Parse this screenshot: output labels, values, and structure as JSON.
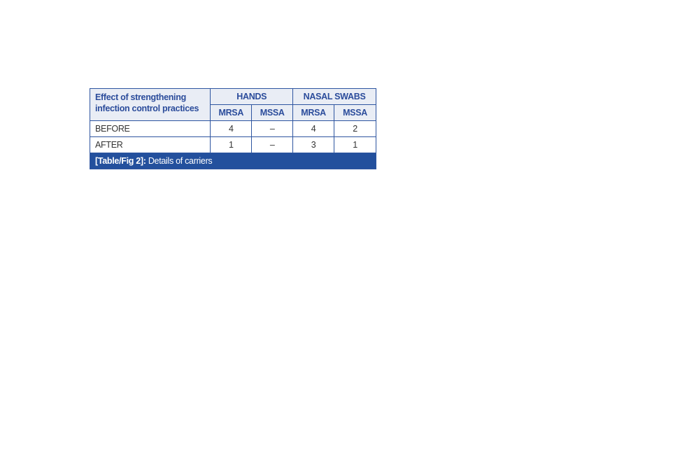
{
  "table": {
    "corner_header": "Effect of strengthening infection control practices",
    "groups": [
      "HANDS",
      "NASAL SWABS"
    ],
    "subheaders": [
      "MRSA",
      "MSSA",
      "MRSA",
      "MSSA"
    ],
    "rows": [
      {
        "label": "BEFORE",
        "values": [
          "4",
          "–",
          "4",
          "2"
        ]
      },
      {
        "label": "AFTER",
        "values": [
          "1",
          "–",
          "3",
          "1"
        ]
      }
    ],
    "caption_label": "[Table/Fig 2]:",
    "caption_text": " Details of carriers"
  },
  "colors": {
    "header_bg": "#e9edf5",
    "header_text": "#2b4c9b",
    "caption_bg": "#23509d",
    "border": "#2e55a0"
  }
}
